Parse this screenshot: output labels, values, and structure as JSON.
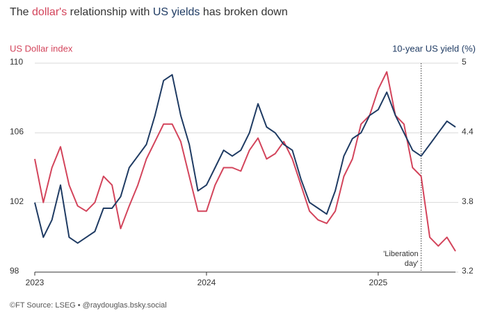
{
  "chart_data": {
    "type": "line",
    "title": [
      "The ",
      "dollar's",
      " relationship with ",
      "US yields",
      " has broken down"
    ],
    "ylabel": "US Dollar index",
    "y2label": "10-year US yield (%)",
    "source": "©FT Source: LSEG • @raydouglas.bsky.social",
    "x": [
      2023.0,
      2023.05,
      2023.1,
      2023.15,
      2023.2,
      2023.25,
      2023.3,
      2023.35,
      2023.4,
      2023.45,
      2023.5,
      2023.55,
      2023.6,
      2023.65,
      2023.7,
      2023.75,
      2023.8,
      2023.85,
      2023.9,
      2023.95,
      2024.0,
      2024.05,
      2024.1,
      2024.15,
      2024.2,
      2024.25,
      2024.3,
      2024.35,
      2024.4,
      2024.45,
      2024.5,
      2024.55,
      2024.6,
      2024.65,
      2024.7,
      2024.75,
      2024.8,
      2024.85,
      2024.9,
      2024.95,
      2025.0,
      2025.05,
      2025.1,
      2025.15,
      2025.2,
      2025.25,
      2025.3,
      2025.35,
      2025.4,
      2025.45
    ],
    "series": [
      {
        "name": "US Dollar index",
        "color": "#d3445b",
        "values": [
          104.5,
          102,
          104,
          105.2,
          103,
          101.8,
          101.5,
          102,
          103.5,
          103,
          100.5,
          101.8,
          103,
          104.5,
          105.5,
          106.5,
          106.5,
          105.5,
          103.5,
          101.5,
          101.5,
          103,
          104,
          104,
          103.8,
          105,
          105.7,
          104.5,
          104.8,
          105.5,
          104.5,
          103,
          101.5,
          101,
          100.8,
          101.5,
          103.5,
          104.5,
          106.5,
          107,
          108.5,
          109.5,
          107,
          106.5,
          104,
          103.5,
          100,
          99.5,
          100,
          99.2
        ]
      },
      {
        "name": "10-year US yield (%)",
        "color": "#1f3b63",
        "axis": "y2",
        "values": [
          3.8,
          3.5,
          3.65,
          3.95,
          3.5,
          3.45,
          3.5,
          3.55,
          3.75,
          3.75,
          3.85,
          4.1,
          4.2,
          4.3,
          4.55,
          4.85,
          4.9,
          4.55,
          4.3,
          3.9,
          3.95,
          4.1,
          4.25,
          4.2,
          4.25,
          4.4,
          4.65,
          4.45,
          4.4,
          4.3,
          4.25,
          4.0,
          3.8,
          3.75,
          3.7,
          3.9,
          4.2,
          4.35,
          4.4,
          4.55,
          4.6,
          4.75,
          4.55,
          4.4,
          4.25,
          4.2,
          4.3,
          4.4,
          4.5,
          4.45
        ]
      }
    ],
    "xlim": [
      2023,
      2025.45
    ],
    "xticks": [
      2023,
      2024,
      2025
    ],
    "ylim": [
      98,
      110
    ],
    "yticks": [
      98,
      102,
      106,
      110
    ],
    "y2lim": [
      3.2,
      5
    ],
    "y2ticks": [
      3.2,
      3.8,
      4.4,
      5
    ],
    "grid": true,
    "event": {
      "x": 2025.25,
      "label": [
        "'Liberation",
        "day'"
      ]
    }
  }
}
